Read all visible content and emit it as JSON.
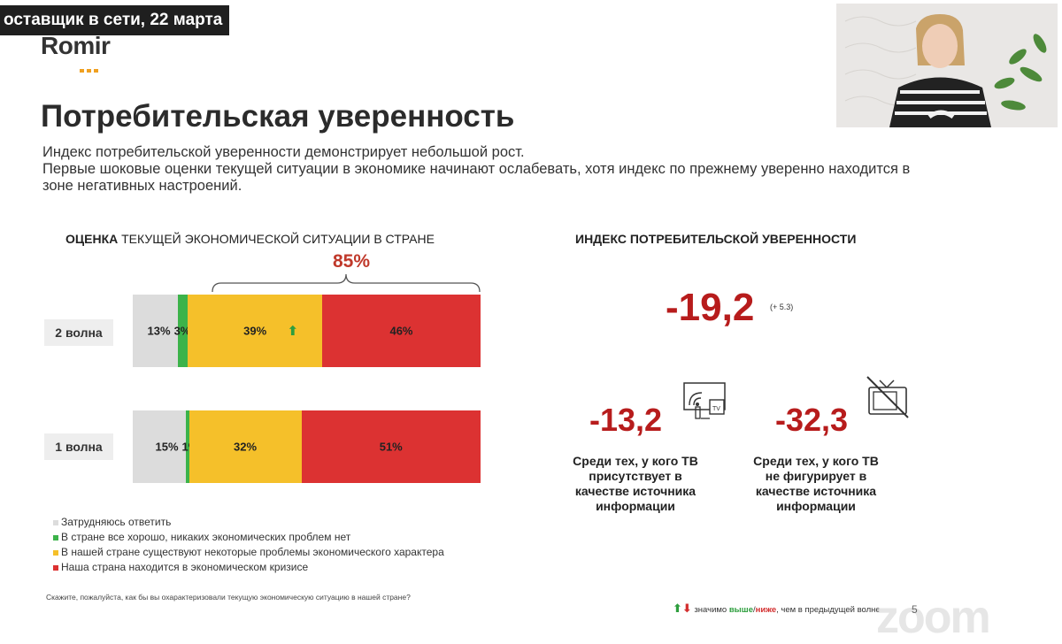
{
  "banner": "оставщик в сети, 22 марта",
  "logo": "Romir",
  "title": "Потребительская уверенность",
  "intro": [
    "Индекс потребительской уверенности демонстрирует небольшой рост.",
    "Первые шоковые оценки текущей ситуации в экономике начинают ослабевать, хотя индекс по прежнему уверенно находится в",
    "зоне негативных настроений."
  ],
  "left_chart": {
    "heading_bold": "ОЦЕНКА",
    "heading_rest": " ТЕКУЩЕЙ ЭКОНОМИЧЕСКОЙ СИТУАЦИИ В СТРАНЕ",
    "bracket_value": "85%"
  },
  "chart_data": {
    "type": "bar",
    "orientation": "horizontal-stacked",
    "categories": [
      "2 волна",
      "1 волна"
    ],
    "series": [
      {
        "name": "Затрудняюсь ответить",
        "values": [
          13,
          15
        ],
        "labels": [
          "13%",
          "15%"
        ],
        "color": "#dcdcdc"
      },
      {
        "name": "В стране все хорошо, никаких экономических проблем нет",
        "values": [
          3,
          1
        ],
        "labels": [
          "3%",
          "1%"
        ],
        "color": "#3cb34a"
      },
      {
        "name": "В нашей стране существуют некоторые проблемы экономического характера",
        "values": [
          39,
          32
        ],
        "labels": [
          "39%",
          "32%"
        ],
        "color": "#f5c02a"
      },
      {
        "name": "Наша страна находится в экономическом кризисе",
        "values": [
          46,
          51
        ],
        "labels": [
          "46%",
          "51%"
        ],
        "color": "#dc3232"
      }
    ],
    "arrows_up": {
      "2 волна": [
        "В стране все хорошо, никаких экономических проблем нет",
        "В нашей стране существуют некоторые проблемы экономического характера"
      ]
    }
  },
  "footnote": "Скажите, пожалуйста, как бы вы охарактеризовали текущую экономическую ситуацию в нашей стране?",
  "right": {
    "heading": "ИНДЕКС ПОТРЕБИТЕЛЬСКОЙ УВЕРЕННОСТИ",
    "main_value": "-19,2",
    "main_delta": "(+ 5.3)",
    "tv_value": "-13,2",
    "tv_caption": [
      "Среди тех, у кого ТВ",
      "присутствует в",
      "качестве источника",
      "информации"
    ],
    "notv_value": "-32,3",
    "notv_caption": [
      "Среди тех, у кого ТВ",
      "не фигурирует в",
      "качестве источника",
      "информации"
    ],
    "tv_icon_label": "TV"
  },
  "significance_note": {
    "prefix": "значимо ",
    "higher": "выше",
    "sep": "/",
    "lower": "ниже",
    "suffix": ", чем в предыдущей волне"
  },
  "page_number": "5",
  "zoom_watermark": "zoom",
  "colors": {
    "accent_red": "#b71c1c",
    "gray": "#dcdcdc",
    "green": "#3cb34a",
    "yellow": "#f5c02a",
    "red": "#dc3232"
  }
}
